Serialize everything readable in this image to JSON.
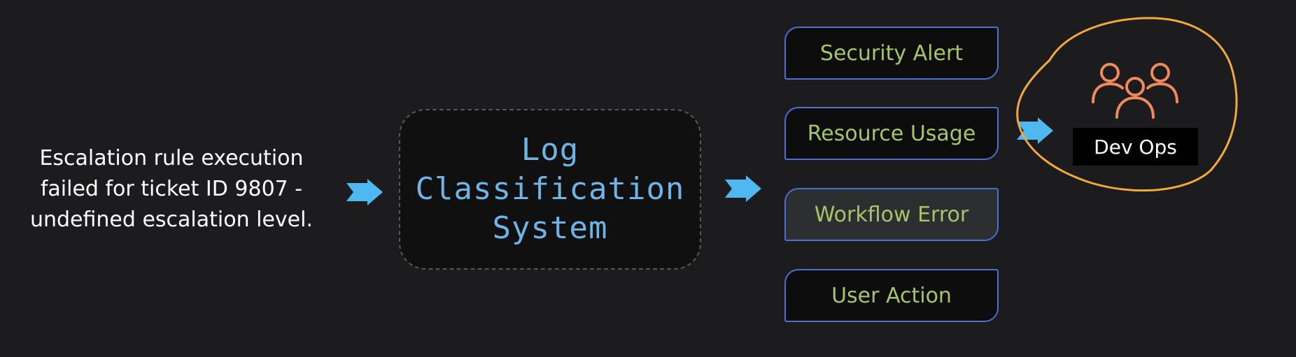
{
  "input_log": {
    "text": "Escalation rule execution\nfailed for ticket ID 9807 -\nundefined escalation level."
  },
  "system": {
    "title": "Log\nClassification\nSystem"
  },
  "categories": [
    {
      "label": "Security Alert",
      "highlighted": false
    },
    {
      "label": "Resource Usage",
      "highlighted": false
    },
    {
      "label": "Workflow Error",
      "highlighted": true
    },
    {
      "label": "User Action",
      "highlighted": false
    }
  ],
  "team": {
    "label": "Dev Ops",
    "icon": "people-group-icon"
  },
  "colors": {
    "background": "#1c1c1e",
    "arrow": "#4fb8f0",
    "system_text": "#6fb4e6",
    "category_border": "#4b6fd4",
    "category_text": "#a7c46a",
    "team_icon": "#f08a5d",
    "circle_annotation": "#f2a93b"
  }
}
